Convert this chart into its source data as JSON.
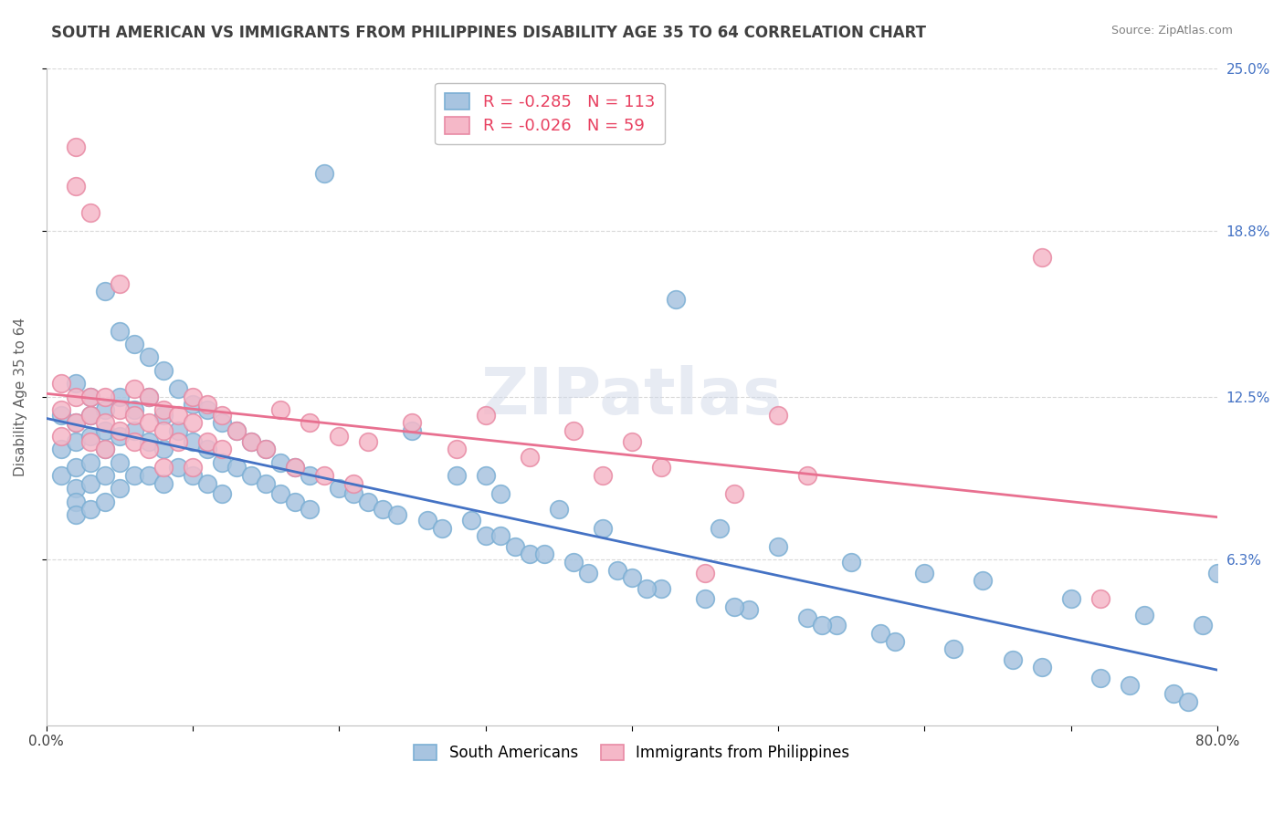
{
  "title": "SOUTH AMERICAN VS IMMIGRANTS FROM PHILIPPINES DISABILITY AGE 35 TO 64 CORRELATION CHART",
  "source": "Source: ZipAtlas.com",
  "xlabel": "",
  "ylabel": "Disability Age 35 to 64",
  "watermark": "ZIPatlas",
  "xlim": [
    0.0,
    0.8
  ],
  "ylim": [
    0.0,
    0.25
  ],
  "xticks": [
    0.0,
    0.1,
    0.2,
    0.3,
    0.4,
    0.5,
    0.6,
    0.7,
    0.8
  ],
  "xticklabels": [
    "0.0%",
    "",
    "",
    "",
    "",
    "",
    "",
    "",
    "80.0%"
  ],
  "ytick_right_labels": [
    "6.3%",
    "12.5%",
    "18.8%",
    "25.0%"
  ],
  "ytick_right_values": [
    0.063,
    0.125,
    0.188,
    0.25
  ],
  "series1_label": "South Americans",
  "series1_R": "-0.285",
  "series1_N": "113",
  "series1_color": "#a8c4e0",
  "series1_edge": "#7bafd4",
  "series2_label": "Immigrants from Philippines",
  "series2_R": "-0.026",
  "series2_N": "59",
  "series2_color": "#f5b8c8",
  "series2_edge": "#e88aa4",
  "trend1_color": "#4472c4",
  "trend2_color": "#e87090",
  "legend_R_color": "#e84060",
  "legend_N_color": "#4472c4",
  "title_color": "#404040",
  "source_color": "#808080",
  "grid_color": "#d8d8d8",
  "background_color": "#ffffff",
  "blue_scatter_x": [
    0.01,
    0.01,
    0.01,
    0.02,
    0.02,
    0.02,
    0.02,
    0.02,
    0.02,
    0.02,
    0.03,
    0.03,
    0.03,
    0.03,
    0.03,
    0.03,
    0.04,
    0.04,
    0.04,
    0.04,
    0.04,
    0.04,
    0.05,
    0.05,
    0.05,
    0.05,
    0.05,
    0.06,
    0.06,
    0.06,
    0.06,
    0.07,
    0.07,
    0.07,
    0.07,
    0.08,
    0.08,
    0.08,
    0.08,
    0.09,
    0.09,
    0.09,
    0.1,
    0.1,
    0.1,
    0.11,
    0.11,
    0.11,
    0.12,
    0.12,
    0.12,
    0.13,
    0.13,
    0.14,
    0.14,
    0.15,
    0.15,
    0.16,
    0.16,
    0.17,
    0.17,
    0.18,
    0.18,
    0.19,
    0.2,
    0.21,
    0.22,
    0.23,
    0.24,
    0.25,
    0.26,
    0.27,
    0.28,
    0.3,
    0.3,
    0.31,
    0.32,
    0.33,
    0.35,
    0.36,
    0.38,
    0.39,
    0.4,
    0.42,
    0.43,
    0.45,
    0.46,
    0.48,
    0.5,
    0.52,
    0.54,
    0.55,
    0.57,
    0.58,
    0.6,
    0.62,
    0.64,
    0.66,
    0.68,
    0.7,
    0.72,
    0.74,
    0.75,
    0.77,
    0.78,
    0.79,
    0.8,
    0.29,
    0.31,
    0.34,
    0.37,
    0.41,
    0.47,
    0.53
  ],
  "blue_scatter_y": [
    0.118,
    0.105,
    0.095,
    0.13,
    0.115,
    0.108,
    0.098,
    0.09,
    0.085,
    0.08,
    0.125,
    0.118,
    0.11,
    0.1,
    0.092,
    0.082,
    0.165,
    0.12,
    0.112,
    0.105,
    0.095,
    0.085,
    0.15,
    0.125,
    0.11,
    0.1,
    0.09,
    0.145,
    0.12,
    0.112,
    0.095,
    0.14,
    0.125,
    0.108,
    0.095,
    0.135,
    0.118,
    0.105,
    0.092,
    0.128,
    0.112,
    0.098,
    0.122,
    0.108,
    0.095,
    0.12,
    0.105,
    0.092,
    0.115,
    0.1,
    0.088,
    0.112,
    0.098,
    0.108,
    0.095,
    0.105,
    0.092,
    0.1,
    0.088,
    0.098,
    0.085,
    0.095,
    0.082,
    0.21,
    0.09,
    0.088,
    0.085,
    0.082,
    0.08,
    0.112,
    0.078,
    0.075,
    0.095,
    0.072,
    0.095,
    0.088,
    0.068,
    0.065,
    0.082,
    0.062,
    0.075,
    0.059,
    0.056,
    0.052,
    0.162,
    0.048,
    0.075,
    0.044,
    0.068,
    0.041,
    0.038,
    0.062,
    0.035,
    0.032,
    0.058,
    0.029,
    0.055,
    0.025,
    0.022,
    0.048,
    0.018,
    0.015,
    0.042,
    0.012,
    0.009,
    0.038,
    0.058,
    0.078,
    0.072,
    0.065,
    0.058,
    0.052,
    0.045,
    0.038
  ],
  "pink_scatter_x": [
    0.01,
    0.01,
    0.01,
    0.02,
    0.02,
    0.02,
    0.02,
    0.03,
    0.03,
    0.03,
    0.03,
    0.04,
    0.04,
    0.04,
    0.05,
    0.05,
    0.05,
    0.06,
    0.06,
    0.06,
    0.07,
    0.07,
    0.07,
    0.08,
    0.08,
    0.08,
    0.09,
    0.09,
    0.1,
    0.1,
    0.1,
    0.11,
    0.11,
    0.12,
    0.12,
    0.13,
    0.14,
    0.15,
    0.16,
    0.17,
    0.18,
    0.19,
    0.2,
    0.21,
    0.22,
    0.25,
    0.28,
    0.3,
    0.33,
    0.36,
    0.38,
    0.4,
    0.42,
    0.45,
    0.47,
    0.5,
    0.52,
    0.68,
    0.72
  ],
  "pink_scatter_y": [
    0.13,
    0.12,
    0.11,
    0.22,
    0.205,
    0.125,
    0.115,
    0.195,
    0.125,
    0.118,
    0.108,
    0.125,
    0.115,
    0.105,
    0.168,
    0.12,
    0.112,
    0.128,
    0.118,
    0.108,
    0.125,
    0.115,
    0.105,
    0.12,
    0.112,
    0.098,
    0.118,
    0.108,
    0.125,
    0.115,
    0.098,
    0.122,
    0.108,
    0.118,
    0.105,
    0.112,
    0.108,
    0.105,
    0.12,
    0.098,
    0.115,
    0.095,
    0.11,
    0.092,
    0.108,
    0.115,
    0.105,
    0.118,
    0.102,
    0.112,
    0.095,
    0.108,
    0.098,
    0.058,
    0.088,
    0.118,
    0.095,
    0.178,
    0.048
  ]
}
